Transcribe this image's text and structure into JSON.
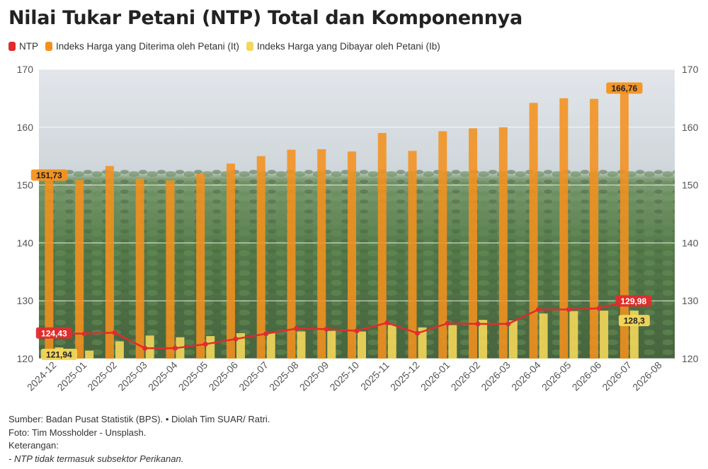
{
  "title": "Nilai Tukar Petani (NTP) Total dan Komponennya",
  "legend": [
    {
      "label": "NTP",
      "color": "#e02c2c"
    },
    {
      "label": "Indeks Harga yang Diterima oleh Petani (It)",
      "color": "#f4911e"
    },
    {
      "label": "Indeks Harga yang Dibayar oleh Petani (Ib)",
      "color": "#f3d75a"
    }
  ],
  "footer": {
    "source": "Sumber: Badan Pusat Statistik (BPS). • Diolah Tim SUAR/ Ratri.",
    "photo": "Foto: Tim Mossholder - Unsplash.",
    "notes_label": "Keterangan:",
    "note": "- NTP tidak termasuk subsektor Perikanan."
  },
  "chart_data": {
    "type": "bar",
    "categories": [
      "2024-12",
      "2025-01",
      "2025-02",
      "2025-03",
      "2025-04",
      "2025-05",
      "2025-06",
      "2025-07",
      "2025-08",
      "2025-09",
      "2025-10",
      "2025-11",
      "2025-12",
      "2026-01",
      "2026-02",
      "2026-03",
      "2026-04",
      "2026-05",
      "2026-06",
      "2026-07",
      "2026-08"
    ],
    "ylim": [
      120,
      170
    ],
    "yticks": [
      120,
      130,
      140,
      150,
      160,
      170
    ],
    "grid": true,
    "legend_position": "top-left",
    "series": [
      {
        "name": "Indeks Harga yang Diterima oleh Petani (It)",
        "type": "bar",
        "color": "#f4911e",
        "values": [
          151.73,
          150.9,
          153.3,
          151.1,
          150.8,
          151.9,
          153.7,
          155.0,
          156.1,
          156.2,
          155.8,
          159.0,
          155.9,
          159.3,
          159.8,
          160.0,
          164.2,
          165.0,
          164.9,
          166.76,
          null
        ]
      },
      {
        "name": "Indeks Harga yang Dibayar oleh Petani (Ib)",
        "type": "bar",
        "color": "#f3d75a",
        "values": [
          121.94,
          121.4,
          123.0,
          124.0,
          123.7,
          123.9,
          124.4,
          124.5,
          124.7,
          124.8,
          124.7,
          125.8,
          125.4,
          125.8,
          126.7,
          126.6,
          127.8,
          128.2,
          128.3,
          128.3,
          null
        ]
      },
      {
        "name": "NTP",
        "type": "line",
        "color": "#e02c2c",
        "values": [
          124.43,
          124.3,
          124.5,
          121.8,
          121.8,
          122.5,
          123.4,
          124.3,
          125.2,
          125.1,
          124.8,
          126.2,
          124.4,
          126.1,
          126.0,
          126.0,
          128.5,
          128.5,
          128.7,
          129.98,
          null
        ]
      }
    ],
    "data_labels": [
      {
        "series": "Indeks Harga yang Diterima oleh Petani (It)",
        "category": "2024-12",
        "text": "151,73"
      },
      {
        "series": "Indeks Harga yang Diterima oleh Petani (It)",
        "category": "2026-07",
        "text": "166,76"
      },
      {
        "series": "Indeks Harga yang Dibayar oleh Petani (Ib)",
        "category": "2024-12",
        "text": "121,94"
      },
      {
        "series": "Indeks Harga yang Dibayar oleh Petani (Ib)",
        "category": "2026-07",
        "text": "128,3"
      },
      {
        "series": "NTP",
        "category": "2024-12",
        "text": "124,43"
      },
      {
        "series": "NTP",
        "category": "2026-07",
        "text": "129,98"
      }
    ]
  }
}
